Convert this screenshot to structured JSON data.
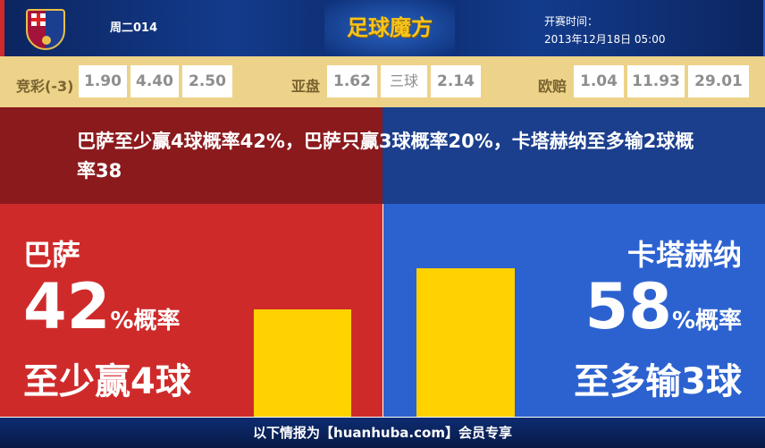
{
  "header": {
    "match_id": "周二014",
    "brand": "足球魔方",
    "start_label": "开赛时间：",
    "start_time": "2013年12月18日 05:00",
    "logo_text": "FCB"
  },
  "odds": {
    "jingcai": {
      "label": "竞彩(-3)",
      "values": [
        "1.90",
        "4.40",
        "2.50"
      ]
    },
    "yapan": {
      "label": "亚盘",
      "values": [
        "1.62",
        "三球",
        "2.14"
      ]
    },
    "oupei": {
      "label": "欧赔",
      "values": [
        "1.04",
        "11.93",
        "29.01"
      ]
    }
  },
  "headline": "巴萨至少赢4球概率42%，巴萨只赢3球概率20%，卡塔赫纳至多输2球概率38",
  "left": {
    "team": "巴萨",
    "percent": "42",
    "percent_suffix": "%概率",
    "result": "至少赢4球",
    "bar_value": 42,
    "color": "#cf2a2a"
  },
  "right": {
    "team": "卡塔赫纳",
    "percent": "58",
    "percent_suffix": "%概率",
    "result": "至多输3球",
    "bar_value": 58,
    "color": "#2c62d0"
  },
  "footer": "以下情报为【huanhuba.com】会员专享"
}
